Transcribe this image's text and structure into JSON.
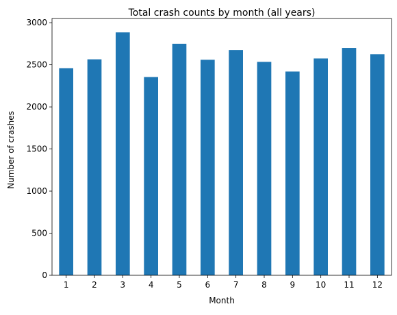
{
  "chart_data": {
    "type": "bar",
    "title": "Total crash counts by month (all years)",
    "xlabel": "Month",
    "ylabel": "Number of crashes",
    "categories": [
      "1",
      "2",
      "3",
      "4",
      "5",
      "6",
      "7",
      "8",
      "9",
      "10",
      "11",
      "12"
    ],
    "values": [
      2460,
      2565,
      2885,
      2355,
      2750,
      2560,
      2675,
      2535,
      2420,
      2575,
      2700,
      2625
    ],
    "ylim": [
      0,
      3050
    ],
    "yticks": [
      0,
      500,
      1000,
      1500,
      2000,
      2500,
      3000
    ],
    "grid": false,
    "legend": "none",
    "bar_color": "#1f77b4"
  }
}
